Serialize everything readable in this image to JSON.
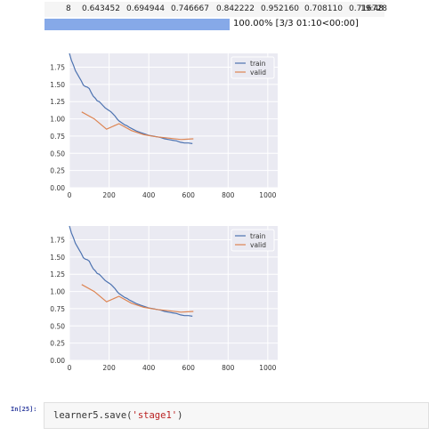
{
  "results_row": {
    "epoch": "8",
    "train_loss": "0.643452",
    "valid_loss": "0.694944",
    "metric1": "0.746667",
    "metric2": "0.842222",
    "metric3": "0.952160",
    "metric4": "0.708110",
    "metric5": "0.716728",
    "time": "19:48"
  },
  "progress": {
    "fraction": 1.0,
    "text": "100.00% [3/3 01:10<00:00]"
  },
  "chart_data": [
    {
      "type": "line",
      "title": "",
      "xlabel": "",
      "ylabel": "",
      "xlim": [
        0,
        1050
      ],
      "ylim": [
        0,
        1.95
      ],
      "xticks": [
        "0",
        "200",
        "400",
        "600",
        "800",
        "1000"
      ],
      "yticks": [
        "0.00",
        "0.25",
        "0.50",
        "0.75",
        "1.00",
        "1.25",
        "1.50",
        "1.75"
      ],
      "legend_position": "top-right",
      "grid": true,
      "series": [
        {
          "name": "train",
          "color": "#4c72b0",
          "x": [
            0,
            10,
            20,
            30,
            40,
            50,
            60,
            70,
            80,
            90,
            100,
            110,
            120,
            130,
            140,
            150,
            160,
            170,
            180,
            190,
            200,
            210,
            220,
            230,
            240,
            250,
            260,
            270,
            280,
            290,
            300,
            320,
            340,
            360,
            380,
            400,
            420,
            440,
            460,
            480,
            500,
            520,
            540,
            560,
            580,
            600,
            620
          ],
          "y": [
            1.95,
            1.85,
            1.78,
            1.7,
            1.65,
            1.6,
            1.55,
            1.49,
            1.47,
            1.46,
            1.44,
            1.38,
            1.33,
            1.3,
            1.26,
            1.25,
            1.22,
            1.19,
            1.16,
            1.14,
            1.12,
            1.1,
            1.07,
            1.04,
            1.0,
            0.97,
            0.95,
            0.93,
            0.91,
            0.9,
            0.88,
            0.85,
            0.82,
            0.8,
            0.78,
            0.76,
            0.75,
            0.74,
            0.73,
            0.71,
            0.7,
            0.69,
            0.68,
            0.66,
            0.65,
            0.65,
            0.64
          ]
        },
        {
          "name": "valid",
          "color": "#dd8452",
          "x": [
            62,
            125,
            187,
            250,
            312,
            375,
            437,
            500,
            562,
            625
          ],
          "y": [
            1.1,
            1.0,
            0.85,
            0.93,
            0.83,
            0.77,
            0.74,
            0.72,
            0.7,
            0.71
          ]
        }
      ]
    },
    {
      "type": "line",
      "title": "",
      "xlabel": "",
      "ylabel": "",
      "xlim": [
        0,
        1050
      ],
      "ylim": [
        0,
        1.95
      ],
      "xticks": [
        "0",
        "200",
        "400",
        "600",
        "800",
        "1000"
      ],
      "yticks": [
        "0.00",
        "0.25",
        "0.50",
        "0.75",
        "1.00",
        "1.25",
        "1.50",
        "1.75"
      ],
      "legend_position": "top-right",
      "grid": true,
      "series": [
        {
          "name": "train",
          "color": "#4c72b0",
          "x": [
            0,
            10,
            20,
            30,
            40,
            50,
            60,
            70,
            80,
            90,
            100,
            110,
            120,
            130,
            140,
            150,
            160,
            170,
            180,
            190,
            200,
            210,
            220,
            230,
            240,
            250,
            260,
            270,
            280,
            290,
            300,
            320,
            340,
            360,
            380,
            400,
            420,
            440,
            460,
            480,
            500,
            520,
            540,
            560,
            580,
            600,
            620
          ],
          "y": [
            1.95,
            1.85,
            1.78,
            1.7,
            1.65,
            1.6,
            1.55,
            1.49,
            1.47,
            1.46,
            1.44,
            1.38,
            1.33,
            1.3,
            1.26,
            1.25,
            1.22,
            1.19,
            1.16,
            1.14,
            1.12,
            1.1,
            1.07,
            1.04,
            1.0,
            0.97,
            0.95,
            0.93,
            0.91,
            0.9,
            0.88,
            0.85,
            0.82,
            0.8,
            0.78,
            0.76,
            0.75,
            0.74,
            0.73,
            0.71,
            0.7,
            0.69,
            0.68,
            0.66,
            0.65,
            0.65,
            0.64
          ]
        },
        {
          "name": "valid",
          "color": "#dd8452",
          "x": [
            62,
            125,
            187,
            250,
            312,
            375,
            437,
            500,
            562,
            625
          ],
          "y": [
            1.1,
            1.0,
            0.85,
            0.93,
            0.83,
            0.77,
            0.74,
            0.72,
            0.7,
            0.71
          ]
        }
      ]
    }
  ],
  "cell": {
    "prompt": "In[25]:",
    "code_prefix": "learner5.save(",
    "code_string": "'stage1'",
    "code_suffix": ")"
  },
  "colors": {
    "plot_bg": "#eaeaf2",
    "progress_fill": "#86a9e8",
    "prompt": "#303f9f",
    "string": "#ba2121"
  }
}
